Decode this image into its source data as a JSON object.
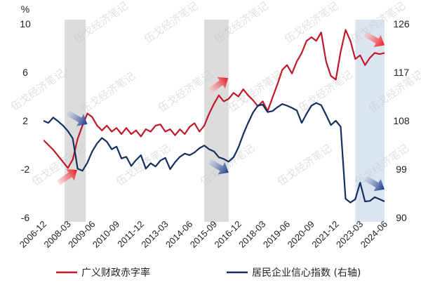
{
  "chart_data": {
    "type": "line",
    "y_left_unit": "%",
    "y_left_ticks": [
      10,
      6,
      2,
      -2,
      -6
    ],
    "y_left_range": [
      -6,
      10
    ],
    "y_right_ticks": [
      126,
      117,
      108,
      99,
      90
    ],
    "y_right_range": [
      90,
      126
    ],
    "x_range": [
      "2006-12",
      "2024-06"
    ],
    "x_ticks": [
      "2006-12",
      "2008-03",
      "2009-06",
      "2010-09",
      "2011-12",
      "2013-03",
      "2014-06",
      "2015-09",
      "2016-12",
      "2018-03",
      "2019-06",
      "2020-09",
      "2021-12",
      "2023-03",
      "2024-06"
    ],
    "shaded_periods": [
      {
        "start": "2008-01",
        "end": "2009-02",
        "color": "#dcdcdc"
      },
      {
        "start": "2015-03",
        "end": "2016-06",
        "color": "#dcdcdc"
      },
      {
        "start": "2022-12",
        "end": "2024-06",
        "color": "#dbe5f1"
      }
    ],
    "series": [
      {
        "name": "广义财政赤字率",
        "axis": "left",
        "color": "#c0182b",
        "points": [
          [
            "2006-12",
            0.4
          ],
          [
            "2007-06",
            -0.4
          ],
          [
            "2007-12",
            -1.4
          ],
          [
            "2008-03",
            -1.9
          ],
          [
            "2008-06",
            -1.2
          ],
          [
            "2008-09",
            0.5
          ],
          [
            "2008-12",
            1.6
          ],
          [
            "2009-03",
            2.6
          ],
          [
            "2009-06",
            2.3
          ],
          [
            "2009-09",
            1.6
          ],
          [
            "2009-12",
            1.2
          ],
          [
            "2010-03",
            1.6
          ],
          [
            "2010-06",
            1.1
          ],
          [
            "2010-09",
            1.4
          ],
          [
            "2010-12",
            0.9
          ],
          [
            "2011-03",
            1.4
          ],
          [
            "2011-06",
            0.9
          ],
          [
            "2011-09",
            1.2
          ],
          [
            "2011-12",
            0.7
          ],
          [
            "2012-03",
            1.3
          ],
          [
            "2012-06",
            1.1
          ],
          [
            "2012-09",
            1.6
          ],
          [
            "2012-12",
            1.7
          ],
          [
            "2013-03",
            1.1
          ],
          [
            "2013-06",
            1.3
          ],
          [
            "2013-09",
            0.8
          ],
          [
            "2013-12",
            1.3
          ],
          [
            "2014-03",
            0.9
          ],
          [
            "2014-06",
            1.5
          ],
          [
            "2014-09",
            1.8
          ],
          [
            "2014-12",
            1.1
          ],
          [
            "2015-03",
            1.6
          ],
          [
            "2015-06",
            2.6
          ],
          [
            "2015-09",
            3.4
          ],
          [
            "2015-12",
            4.1
          ],
          [
            "2016-03",
            3.6
          ],
          [
            "2016-06",
            3.8
          ],
          [
            "2016-09",
            4.3
          ],
          [
            "2016-12",
            4.0
          ],
          [
            "2017-03",
            4.6
          ],
          [
            "2017-06",
            4.1
          ],
          [
            "2017-09",
            3.7
          ],
          [
            "2017-12",
            3.2
          ],
          [
            "2018-03",
            3.6
          ],
          [
            "2018-06",
            2.8
          ],
          [
            "2018-09",
            3.9
          ],
          [
            "2018-12",
            5.0
          ],
          [
            "2019-03",
            6.2
          ],
          [
            "2019-06",
            6.6
          ],
          [
            "2019-09",
            5.9
          ],
          [
            "2019-12",
            6.9
          ],
          [
            "2020-03",
            7.6
          ],
          [
            "2020-06",
            8.6
          ],
          [
            "2020-09",
            8.9
          ],
          [
            "2020-12",
            8.6
          ],
          [
            "2021-03",
            9.3
          ],
          [
            "2021-06",
            6.9
          ],
          [
            "2021-09",
            5.7
          ],
          [
            "2021-12",
            5.4
          ],
          [
            "2022-03",
            7.7
          ],
          [
            "2022-06",
            9.5
          ],
          [
            "2022-09",
            8.6
          ],
          [
            "2022-12",
            7.1
          ],
          [
            "2023-03",
            7.4
          ],
          [
            "2023-06",
            6.6
          ],
          [
            "2023-09",
            7.2
          ],
          [
            "2023-12",
            7.6
          ],
          [
            "2024-03",
            7.5
          ],
          [
            "2024-06",
            7.6
          ]
        ]
      },
      {
        "name": "居民企业信心指数 (右轴)",
        "axis": "right",
        "color": "#142f5e",
        "points": [
          [
            "2006-12",
            108.0
          ],
          [
            "2007-03",
            107.6
          ],
          [
            "2007-06",
            108.6
          ],
          [
            "2007-09",
            107.9
          ],
          [
            "2007-12",
            107.1
          ],
          [
            "2008-03",
            106.1
          ],
          [
            "2008-06",
            104.7
          ],
          [
            "2008-09",
            99.1
          ],
          [
            "2008-12",
            98.7
          ],
          [
            "2009-03",
            100.2
          ],
          [
            "2009-06",
            102.3
          ],
          [
            "2009-09",
            103.8
          ],
          [
            "2009-12",
            104.8
          ],
          [
            "2010-03",
            104.1
          ],
          [
            "2010-06",
            102.7
          ],
          [
            "2010-09",
            103.2
          ],
          [
            "2010-12",
            101.0
          ],
          [
            "2011-03",
            101.3
          ],
          [
            "2011-06",
            99.6
          ],
          [
            "2011-09",
            100.7
          ],
          [
            "2011-12",
            101.6
          ],
          [
            "2012-03",
            99.1
          ],
          [
            "2012-06",
            100.1
          ],
          [
            "2012-09",
            99.5
          ],
          [
            "2012-12",
            100.6
          ],
          [
            "2013-03",
            101.1
          ],
          [
            "2013-06",
            99.0
          ],
          [
            "2013-09",
            100.3
          ],
          [
            "2013-12",
            101.3
          ],
          [
            "2014-03",
            101.9
          ],
          [
            "2014-06",
            101.6
          ],
          [
            "2014-09",
            102.1
          ],
          [
            "2014-12",
            102.9
          ],
          [
            "2015-03",
            103.4
          ],
          [
            "2015-06",
            102.7
          ],
          [
            "2015-09",
            102.3
          ],
          [
            "2015-12",
            101.2
          ],
          [
            "2016-03",
            100.9
          ],
          [
            "2016-06",
            100.4
          ],
          [
            "2016-09",
            101.2
          ],
          [
            "2016-12",
            103.0
          ],
          [
            "2017-03",
            105.5
          ],
          [
            "2017-06",
            107.6
          ],
          [
            "2017-09",
            109.5
          ],
          [
            "2017-12",
            110.8
          ],
          [
            "2018-03",
            111.0
          ],
          [
            "2018-06",
            109.6
          ],
          [
            "2018-09",
            109.8
          ],
          [
            "2018-12",
            110.5
          ],
          [
            "2019-03",
            111.1
          ],
          [
            "2019-06",
            110.8
          ],
          [
            "2019-09",
            110.4
          ],
          [
            "2019-12",
            109.9
          ],
          [
            "2020-03",
            107.6
          ],
          [
            "2020-06",
            109.3
          ],
          [
            "2020-09",
            110.8
          ],
          [
            "2020-12",
            111.3
          ],
          [
            "2021-03",
            110.9
          ],
          [
            "2021-06",
            109.1
          ],
          [
            "2021-09",
            107.2
          ],
          [
            "2021-12",
            108.0
          ],
          [
            "2022-03",
            106.9
          ],
          [
            "2022-06",
            93.5
          ],
          [
            "2022-09",
            92.8
          ],
          [
            "2022-12",
            93.4
          ],
          [
            "2023-03",
            96.5
          ],
          [
            "2023-06",
            93.0
          ],
          [
            "2023-09",
            93.1
          ],
          [
            "2023-12",
            93.8
          ],
          [
            "2024-03",
            93.4
          ],
          [
            "2024-06",
            93.0
          ]
        ]
      }
    ],
    "annotations": [
      {
        "type": "arrow",
        "color": "red",
        "direction": "up-right",
        "at": [
          "2008-03",
          -2.6
        ]
      },
      {
        "type": "arrow",
        "color": "navy",
        "direction": "down-right",
        "at": [
          "2008-09",
          108.4
        ]
      },
      {
        "type": "arrow",
        "color": "red",
        "direction": "up-right",
        "at": [
          "2015-12",
          5.0
        ]
      },
      {
        "type": "arrow",
        "color": "navy",
        "direction": "down-right",
        "at": [
          "2015-12",
          99.4
        ]
      },
      {
        "type": "arrow",
        "color": "red",
        "direction": "down-right",
        "at": [
          "2023-12",
          8.7
        ]
      },
      {
        "type": "arrow",
        "color": "navy",
        "direction": "down-right",
        "at": [
          "2023-12",
          96.3
        ]
      }
    ],
    "legend": {
      "placement": "bottom",
      "items": [
        "广义财政赤字率",
        "居民企业信心指数 (右轴)"
      ]
    },
    "watermark": "伍戈经济笔记"
  }
}
